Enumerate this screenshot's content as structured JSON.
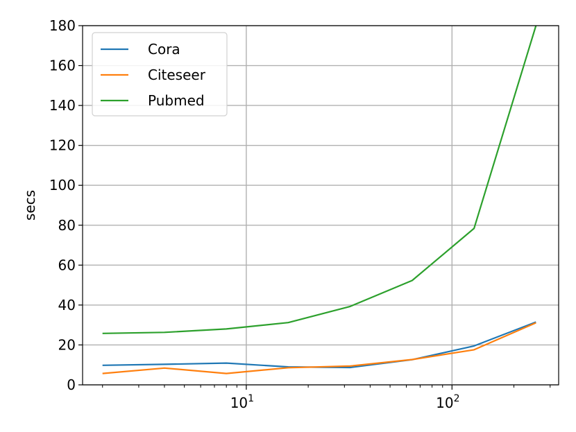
{
  "chart_data": {
    "type": "line",
    "title": "",
    "xlabel": "",
    "ylabel": "secs",
    "xscale": "log",
    "xlim": [
      1.6,
      330
    ],
    "ylim": [
      0,
      180
    ],
    "grid": true,
    "legend_position": "top-left",
    "yticks": [
      0,
      20,
      40,
      60,
      80,
      100,
      120,
      140,
      160,
      180
    ],
    "xticks": [
      {
        "value": 10,
        "base": "10",
        "exp": "1"
      },
      {
        "value": 100,
        "base": "10",
        "exp": "2"
      }
    ],
    "x": [
      2,
      4,
      8,
      16,
      32,
      64,
      128,
      256
    ],
    "series": [
      {
        "name": "Cora",
        "color": "#1f77b4",
        "values": [
          9.8,
          10.3,
          10.9,
          9.0,
          8.7,
          12.6,
          19.5,
          31.5
        ]
      },
      {
        "name": "Citeseer",
        "color": "#ff7f0e",
        "values": [
          5.7,
          8.4,
          5.7,
          8.6,
          9.4,
          12.7,
          17.6,
          31.1
        ]
      },
      {
        "name": "Pubmed",
        "color": "#2ca02c",
        "values": [
          25.8,
          26.3,
          28.0,
          31.2,
          39.3,
          52.3,
          78.4,
          180
        ]
      }
    ]
  }
}
